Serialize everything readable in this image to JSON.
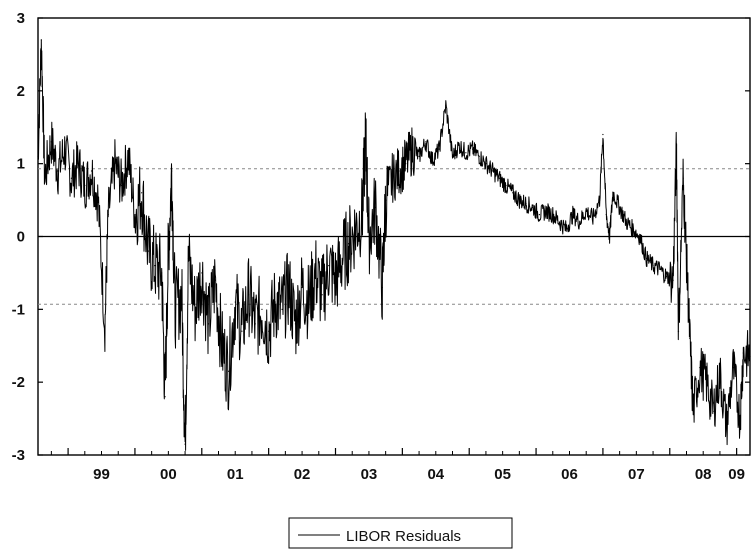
{
  "chart_data": {
    "type": "line",
    "title": "",
    "xlabel": "",
    "ylabel": "",
    "x_tick_labels": [
      "99",
      "00",
      "01",
      "02",
      "03",
      "04",
      "05",
      "06",
      "07",
      "08",
      "09"
    ],
    "x_range": [
      1998.55,
      2009.2
    ],
    "ylim": [
      -3,
      3
    ],
    "y_ticks": [
      -3,
      -2,
      -1,
      0,
      1,
      2,
      3
    ],
    "reference_lines": [
      {
        "value": 0,
        "style": "solid"
      },
      {
        "value": 0.93,
        "style": "dotted"
      },
      {
        "value": -0.93,
        "style": "dotted"
      }
    ],
    "legend": {
      "position": "bottom-center",
      "entries": [
        "LIBOR Residuals"
      ]
    },
    "series": [
      {
        "name": "LIBOR Residuals",
        "color": "#000000",
        "points": [
          [
            1998.55,
            1.1
          ],
          [
            1998.6,
            2.7
          ],
          [
            1998.65,
            0.8
          ],
          [
            1998.75,
            1.3
          ],
          [
            1998.85,
            0.9
          ],
          [
            1998.95,
            1.2
          ],
          [
            1999.05,
            0.8
          ],
          [
            1999.15,
            1.0
          ],
          [
            1999.25,
            0.7
          ],
          [
            1999.35,
            0.9
          ],
          [
            1999.45,
            0.5
          ],
          [
            1999.55,
            -1.25
          ],
          [
            1999.6,
            0.3
          ],
          [
            1999.7,
            1.0
          ],
          [
            1999.8,
            0.7
          ],
          [
            1999.9,
            1.1
          ],
          [
            2000.0,
            0.3
          ],
          [
            2000.1,
            0.6
          ],
          [
            2000.2,
            -0.2
          ],
          [
            2000.3,
            -0.4
          ],
          [
            2000.4,
            -0.5
          ],
          [
            2000.45,
            -2.2
          ],
          [
            2000.5,
            -0.2
          ],
          [
            2000.55,
            0.9
          ],
          [
            2000.6,
            -1.0
          ],
          [
            2000.7,
            -0.8
          ],
          [
            2000.75,
            -2.85
          ],
          [
            2000.8,
            -0.3
          ],
          [
            2000.9,
            -1.0
          ],
          [
            2001.0,
            -0.5
          ],
          [
            2001.1,
            -1.2
          ],
          [
            2001.2,
            -0.6
          ],
          [
            2001.3,
            -1.5
          ],
          [
            2001.4,
            -1.85
          ],
          [
            2001.5,
            -0.9
          ],
          [
            2001.6,
            -1.3
          ],
          [
            2001.7,
            -0.8
          ],
          [
            2001.8,
            -1.2
          ],
          [
            2001.9,
            -1.0
          ],
          [
            2002.0,
            -1.3
          ],
          [
            2002.1,
            -0.9
          ],
          [
            2002.2,
            -1.0
          ],
          [
            2002.3,
            -0.7
          ],
          [
            2002.4,
            -1.2
          ],
          [
            2002.5,
            -0.7
          ],
          [
            2002.6,
            -0.9
          ],
          [
            2002.7,
            -0.5
          ],
          [
            2002.8,
            -0.8
          ],
          [
            2002.9,
            -0.4
          ],
          [
            2003.0,
            -0.6
          ],
          [
            2003.1,
            -0.3
          ],
          [
            2003.2,
            -0.1
          ],
          [
            2003.3,
            0.1
          ],
          [
            2003.4,
            0.3
          ],
          [
            2003.45,
            1.35
          ],
          [
            2003.5,
            0.0
          ],
          [
            2003.6,
            0.4
          ],
          [
            2003.7,
            -0.7
          ],
          [
            2003.75,
            0.5
          ],
          [
            2003.85,
            0.8
          ],
          [
            2003.95,
            0.9
          ],
          [
            2004.05,
            1.0
          ],
          [
            2004.15,
            1.2
          ],
          [
            2004.25,
            1.1
          ],
          [
            2004.35,
            1.3
          ],
          [
            2004.45,
            1.05
          ],
          [
            2004.55,
            1.2
          ],
          [
            2004.65,
            1.8
          ],
          [
            2004.75,
            1.1
          ],
          [
            2004.85,
            1.25
          ],
          [
            2004.95,
            1.15
          ],
          [
            2005.05,
            1.2
          ],
          [
            2005.15,
            1.1
          ],
          [
            2005.25,
            1.0
          ],
          [
            2005.35,
            0.9
          ],
          [
            2005.45,
            0.8
          ],
          [
            2005.55,
            0.7
          ],
          [
            2005.65,
            0.6
          ],
          [
            2005.75,
            0.5
          ],
          [
            2005.85,
            0.45
          ],
          [
            2005.95,
            0.4
          ],
          [
            2006.05,
            0.3
          ],
          [
            2006.15,
            0.35
          ],
          [
            2006.25,
            0.3
          ],
          [
            2006.35,
            0.2
          ],
          [
            2006.45,
            0.1
          ],
          [
            2006.55,
            0.3
          ],
          [
            2006.65,
            0.2
          ],
          [
            2006.75,
            0.35
          ],
          [
            2006.85,
            0.25
          ],
          [
            2006.95,
            0.5
          ],
          [
            2007.0,
            1.4
          ],
          [
            2007.05,
            0.3
          ],
          [
            2007.1,
            0.0
          ],
          [
            2007.15,
            0.6
          ],
          [
            2007.25,
            0.4
          ],
          [
            2007.35,
            0.2
          ],
          [
            2007.45,
            0.1
          ],
          [
            2007.55,
            0.0
          ],
          [
            2007.65,
            -0.3
          ],
          [
            2007.75,
            -0.4
          ],
          [
            2007.85,
            -0.45
          ],
          [
            2007.95,
            -0.55
          ],
          [
            2008.05,
            -0.6
          ],
          [
            2008.1,
            1.25
          ],
          [
            2008.13,
            -1.3
          ],
          [
            2008.2,
            0.8
          ],
          [
            2008.25,
            -0.3
          ],
          [
            2008.3,
            -1.4
          ],
          [
            2008.35,
            -2.4
          ],
          [
            2008.45,
            -1.8
          ],
          [
            2008.55,
            -2.0
          ],
          [
            2008.65,
            -2.4
          ],
          [
            2008.75,
            -1.9
          ],
          [
            2008.85,
            -2.6
          ],
          [
            2008.95,
            -1.8
          ],
          [
            2009.05,
            -2.5
          ],
          [
            2009.1,
            -1.6
          ],
          [
            2009.2,
            -1.65
          ]
        ]
      }
    ]
  }
}
